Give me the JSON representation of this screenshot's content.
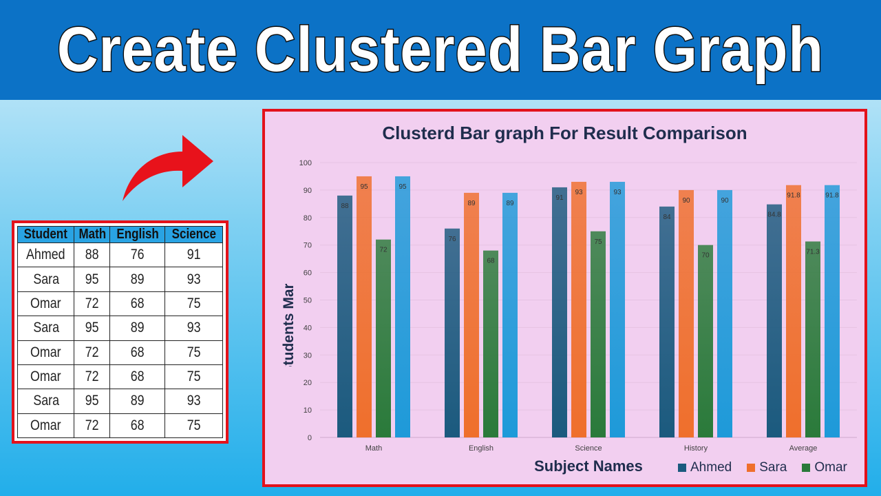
{
  "banner": {
    "title": "Create Clustered Bar Graph"
  },
  "table": {
    "headers": [
      "Student",
      "Math",
      "English",
      "Science"
    ],
    "rows": [
      [
        "Ahmed",
        "88",
        "76",
        "91"
      ],
      [
        "Sara",
        "95",
        "89",
        "93"
      ],
      [
        "Omar",
        "72",
        "68",
        "75"
      ],
      [
        "Sara",
        "95",
        "89",
        "93"
      ],
      [
        "Omar",
        "72",
        "68",
        "75"
      ],
      [
        "Omar",
        "72",
        "68",
        "75"
      ],
      [
        "Sara",
        "95",
        "89",
        "93"
      ],
      [
        "Omar",
        "72",
        "68",
        "75"
      ]
    ]
  },
  "chart_data": {
    "type": "bar",
    "title": "Clusterd Bar graph For Result Comparison",
    "xlabel": "Subject Names",
    "ylabel": "Students Mark",
    "categories": [
      "Math",
      "English",
      "Science",
      "History",
      "Average"
    ],
    "series": [
      {
        "name": "Ahmed",
        "values": [
          88,
          76,
          91,
          84,
          84.8
        ],
        "color": "#1b5a7e"
      },
      {
        "name": "Sara",
        "values": [
          95,
          89,
          93,
          90,
          91.8
        ],
        "color": "#ef6f2c"
      },
      {
        "name": "Omar",
        "values": [
          72,
          68,
          75,
          70,
          71.3
        ],
        "color": "#2a7a3a"
      },
      {
        "values": [
          95,
          89,
          93,
          90,
          91.8
        ],
        "color": "#1e9ad9"
      }
    ],
    "ylim": [
      0,
      100
    ],
    "yticks": [
      0,
      10,
      20,
      30,
      40,
      50,
      60,
      70,
      80,
      90,
      100
    ],
    "grid": true,
    "legend": [
      "Ahmed",
      "Sara",
      "Omar"
    ],
    "legend_position": "bottom-right"
  },
  "colors": {
    "banner": "#0c72c6",
    "frame": "#e3121b",
    "chart_bg": "#f2cff0",
    "arrow": "#e8121b"
  }
}
